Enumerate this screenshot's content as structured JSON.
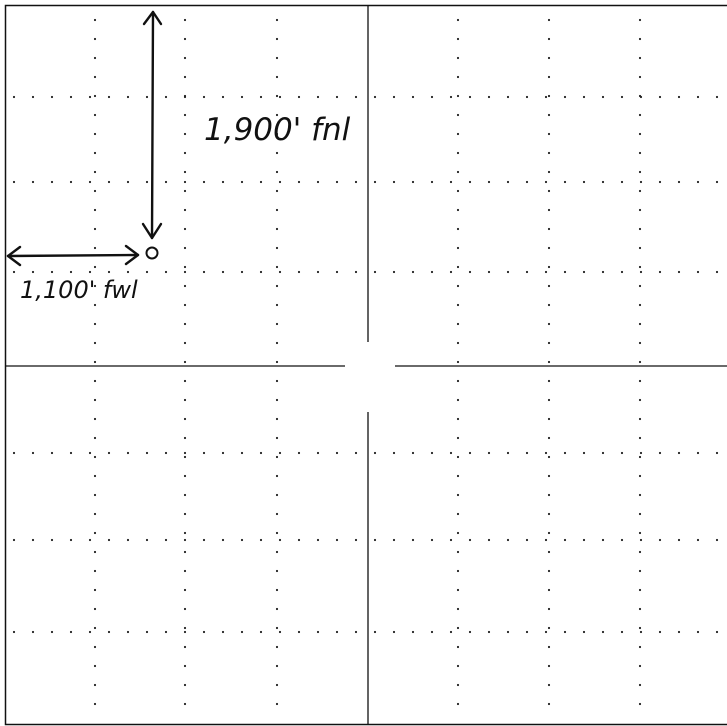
{
  "diagram": {
    "labels": {
      "fnl": "1,900' fnl",
      "fwl": "1,100' fwl"
    },
    "colors": {
      "ink": "#111111",
      "grid_dots": "#222222",
      "paper": "#ffffff"
    }
  }
}
